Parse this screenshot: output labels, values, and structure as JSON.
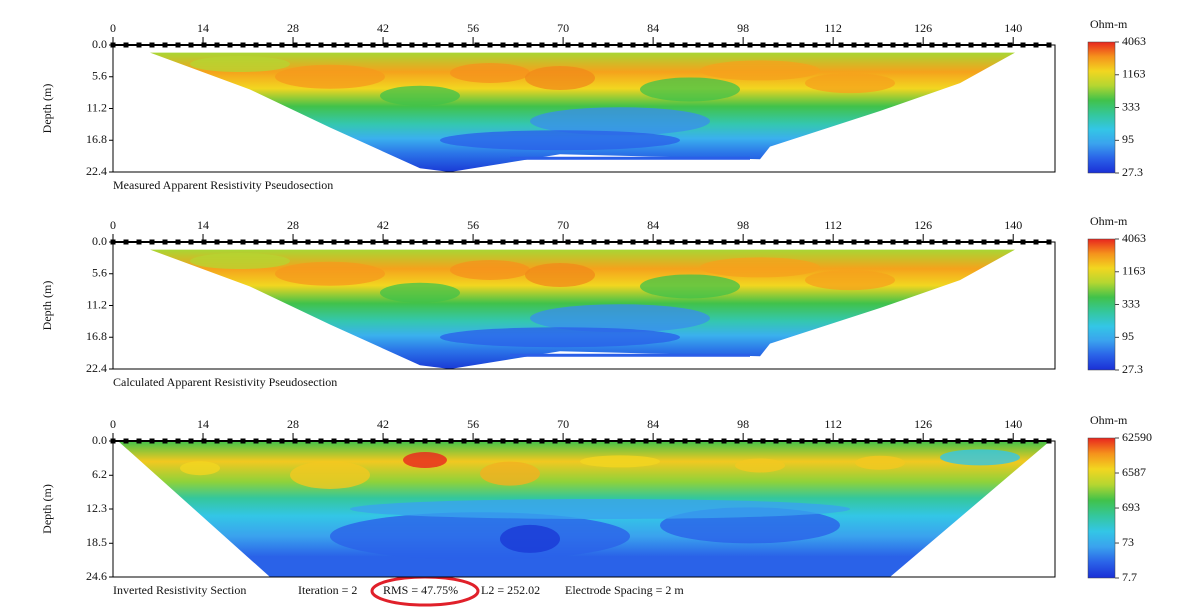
{
  "chart_data": [
    {
      "type": "pseudosection",
      "title": "Measured Apparent Resistivity Pseudosection",
      "y_label": "Depth (m)",
      "xlim": [
        0,
        146.5
      ],
      "xticks": [
        0,
        14,
        28,
        42,
        56,
        70,
        84,
        98,
        112,
        126,
        140
      ],
      "ylim": [
        0,
        22.4
      ],
      "yticks": [
        {
          "value": 0,
          "label": "0.0"
        },
        5.6,
        11.2,
        16.8,
        22.4
      ],
      "colorbar": {
        "label": "Ohm-m",
        "log": true,
        "clim": [
          27.3,
          4063
        ],
        "ticks": [
          4063,
          1163,
          333,
          95,
          27.3
        ],
        "colors": [
          "#1a2fd6",
          "#2a62e8",
          "#3aa2ee",
          "#33c6e6",
          "#34c79c",
          "#41c24a",
          "#b5d631",
          "#f2d620",
          "#f5921c",
          "#e8261e"
        ]
      }
    },
    {
      "type": "pseudosection",
      "title": "Calculated Apparent Resistivity Pseudosection",
      "y_label": "Depth (m)",
      "xlim": [
        0,
        146.5
      ],
      "xticks": [
        0,
        14,
        28,
        42,
        56,
        70,
        84,
        98,
        112,
        126,
        140
      ],
      "ylim": [
        0,
        22.4
      ],
      "yticks": [
        {
          "value": 0,
          "label": "0.0"
        },
        5.6,
        11.2,
        16.8,
        22.4
      ],
      "colorbar": {
        "label": "Ohm-m",
        "log": true,
        "clim": [
          27.3,
          4063
        ],
        "ticks": [
          4063,
          1163,
          333,
          95,
          27.3
        ],
        "colors": [
          "#1a2fd6",
          "#2a62e8",
          "#3aa2ee",
          "#33c6e6",
          "#34c79c",
          "#41c24a",
          "#b5d631",
          "#f2d620",
          "#f5921c",
          "#e8261e"
        ]
      }
    },
    {
      "type": "section",
      "title": "Inverted Resistivity Section",
      "y_label": "Depth (m)",
      "annotations": [
        "Iteration = 2",
        "RMS = 47.75%",
        "L2 = 252.02",
        "Electrode Spacing = 2 m"
      ],
      "xlim": [
        0,
        146.5
      ],
      "xticks": [
        0,
        14,
        28,
        42,
        56,
        70,
        84,
        98,
        112,
        126,
        140
      ],
      "ylim": [
        0,
        24.6
      ],
      "yticks": [
        {
          "value": 0,
          "label": "0.0"
        },
        6.2,
        12.3,
        18.5,
        24.6
      ],
      "colorbar": {
        "label": "Ohm-m",
        "log": true,
        "clim": [
          7.7,
          62590
        ],
        "ticks": [
          62590,
          6587,
          693,
          73,
          7.7
        ],
        "colors": [
          "#1a2fd6",
          "#2a62e8",
          "#3aa2ee",
          "#33c6e6",
          "#34c79c",
          "#41c24a",
          "#b5d631",
          "#f2d620",
          "#f5921c",
          "#e8261e"
        ]
      }
    }
  ]
}
